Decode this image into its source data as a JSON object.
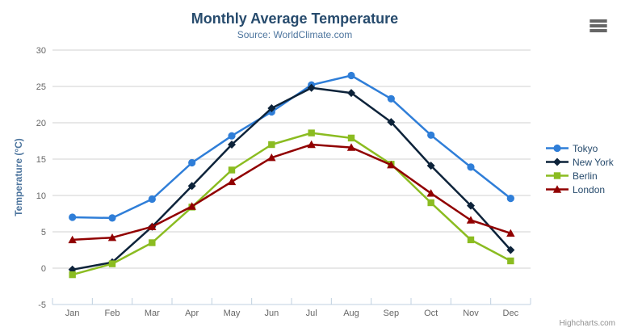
{
  "chart_data": {
    "type": "line",
    "title": "Monthly Average Temperature",
    "subtitle": "Source: WorldClimate.com",
    "xlabel": "",
    "ylabel": "Temperature (°C)",
    "categories": [
      "Jan",
      "Feb",
      "Mar",
      "Apr",
      "May",
      "Jun",
      "Jul",
      "Aug",
      "Sep",
      "Oct",
      "Nov",
      "Dec"
    ],
    "ylim": [
      -5,
      30
    ],
    "yticks": [
      -5,
      0,
      5,
      10,
      15,
      20,
      25,
      30
    ],
    "grid": true,
    "legend_position": "right-middle",
    "series": [
      {
        "name": "Tokyo",
        "color": "#2f7ed8",
        "marker": "circle",
        "values": [
          7.0,
          6.9,
          9.5,
          14.5,
          18.2,
          21.5,
          25.2,
          26.5,
          23.3,
          18.3,
          13.9,
          9.6
        ]
      },
      {
        "name": "New York",
        "color": "#0d233a",
        "marker": "diamond",
        "values": [
          -0.2,
          0.8,
          5.7,
          11.3,
          17.0,
          22.0,
          24.8,
          24.1,
          20.1,
          14.1,
          8.6,
          2.5
        ]
      },
      {
        "name": "Berlin",
        "color": "#8bbc21",
        "marker": "square",
        "values": [
          -0.9,
          0.6,
          3.5,
          8.4,
          13.5,
          17.0,
          18.6,
          17.9,
          14.3,
          9.0,
          3.9,
          1.0
        ]
      },
      {
        "name": "London",
        "color": "#910000",
        "marker": "triangle",
        "values": [
          3.9,
          4.2,
          5.7,
          8.5,
          11.9,
          15.2,
          17.0,
          16.6,
          14.2,
          10.3,
          6.6,
          4.8
        ]
      }
    ]
  },
  "credits": {
    "label": "Highcharts.com"
  },
  "export_menu": {
    "icon": "hamburger-icon"
  },
  "colors": {
    "title_text": "#274b6d",
    "subtitle_text": "#4d759e",
    "axis_label_text": "#666666",
    "axis_title_text": "#4d759e",
    "axis_line": "#c0d0e0",
    "gridline": "#d0d0d0",
    "legend_text": "#274b6d",
    "credits_text": "#909090",
    "hamburger": "#666666"
  }
}
